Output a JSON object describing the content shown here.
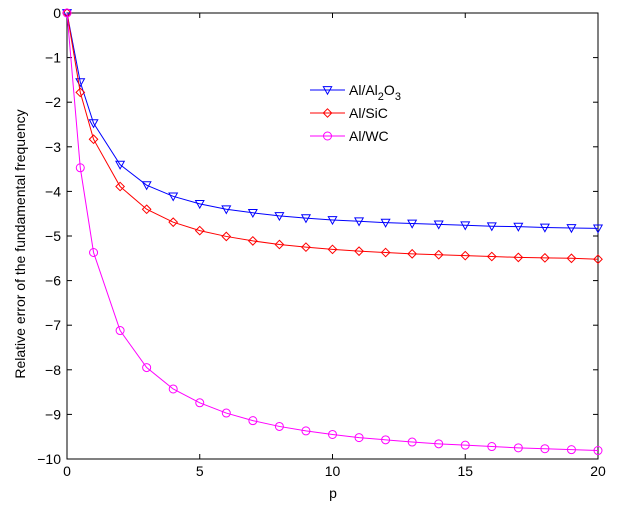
{
  "chart_data": {
    "type": "line",
    "xlabel": "p",
    "ylabel": "Relative error of the fundamental frequency",
    "xlim": [
      0,
      20
    ],
    "ylim": [
      -10,
      0
    ],
    "xticks": [
      0,
      5,
      10,
      15,
      20
    ],
    "yticks": [
      0,
      -1,
      -2,
      -3,
      -4,
      -5,
      -6,
      -7,
      -8,
      -9,
      -10
    ],
    "grid": false,
    "legend_position": "top-right (inside)",
    "x": [
      0,
      0.5,
      1,
      2,
      3,
      4,
      5,
      6,
      7,
      8,
      9,
      10,
      11,
      12,
      13,
      14,
      15,
      16,
      17,
      18,
      19,
      20
    ],
    "series": [
      {
        "name": "Al/Al2O3",
        "name_base": "Al/Al",
        "name_sub1": "2",
        "name_mid": "O",
        "name_sub2": "3",
        "color": "#0000ff",
        "marker": "triangle-down",
        "values": [
          0,
          -1.55,
          -2.47,
          -3.4,
          -3.86,
          -4.11,
          -4.28,
          -4.4,
          -4.48,
          -4.55,
          -4.6,
          -4.64,
          -4.67,
          -4.7,
          -4.72,
          -4.74,
          -4.76,
          -4.78,
          -4.79,
          -4.81,
          -4.82,
          -4.83
        ]
      },
      {
        "name": "Al/SiC",
        "color": "#ff0000",
        "marker": "diamond",
        "values": [
          0,
          -1.78,
          -2.83,
          -3.89,
          -4.4,
          -4.69,
          -4.88,
          -5.01,
          -5.11,
          -5.19,
          -5.25,
          -5.3,
          -5.34,
          -5.37,
          -5.4,
          -5.42,
          -5.44,
          -5.46,
          -5.48,
          -5.49,
          -5.5,
          -5.52
        ]
      },
      {
        "name": "Al/WC",
        "color": "#ff00ff",
        "marker": "circle",
        "values": [
          0,
          -3.47,
          -5.37,
          -7.12,
          -7.95,
          -8.43,
          -8.74,
          -8.97,
          -9.14,
          -9.27,
          -9.37,
          -9.45,
          -9.52,
          -9.57,
          -9.62,
          -9.66,
          -9.69,
          -9.72,
          -9.75,
          -9.77,
          -9.79,
          -9.81
        ]
      }
    ]
  }
}
